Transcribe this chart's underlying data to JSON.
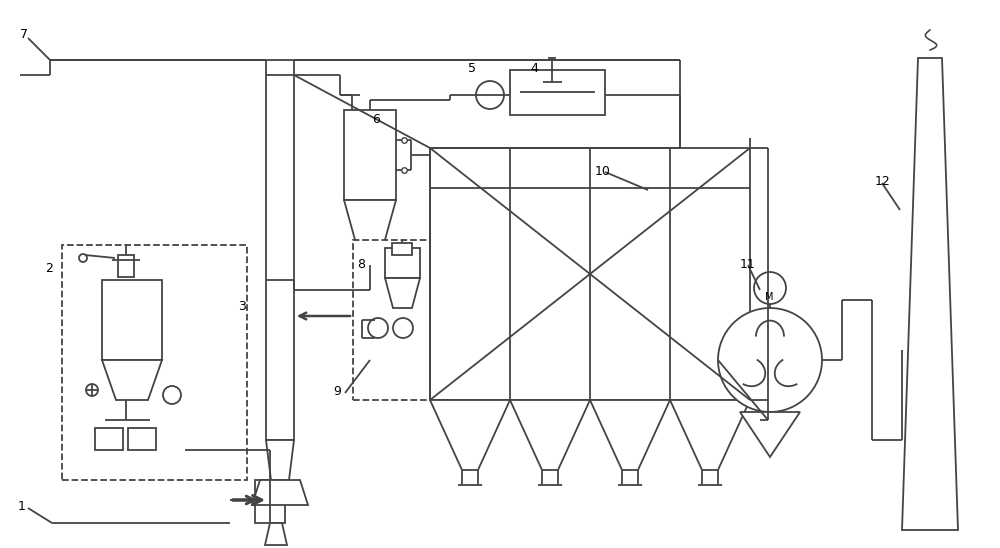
{
  "bg_color": "#ffffff",
  "line_color": "#444444",
  "lw": 1.3
}
